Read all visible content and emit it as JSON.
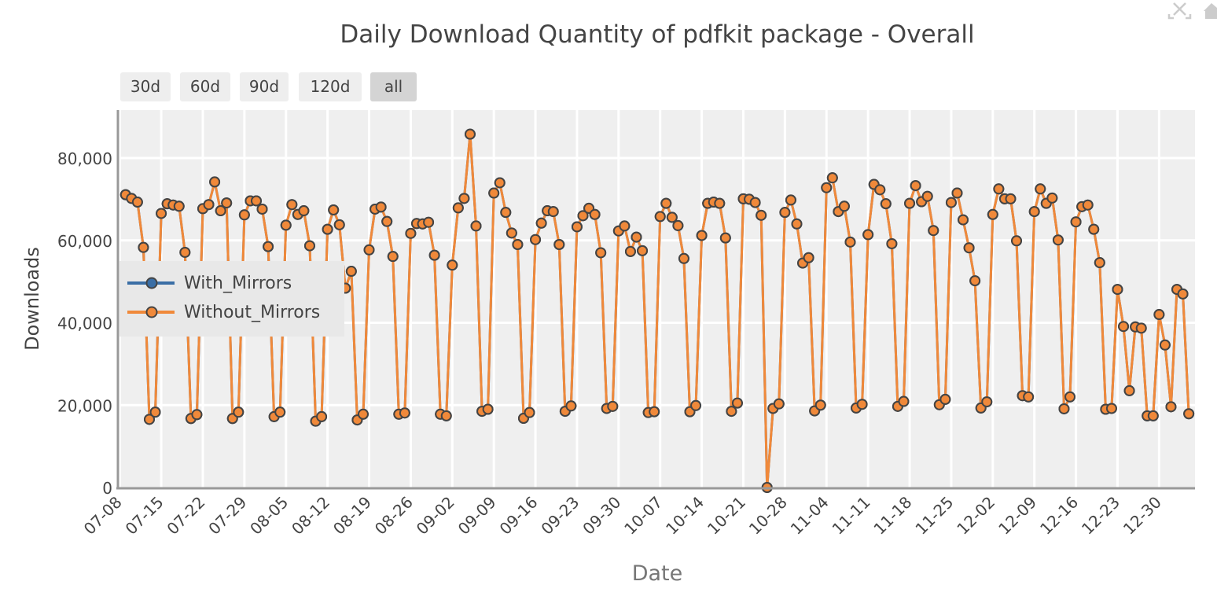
{
  "chart_data": {
    "type": "line",
    "title": "Daily Download Quantity of pdfkit package - Overall",
    "xlabel": "Date",
    "ylabel": "Downloads",
    "ylim": [
      0,
      91650
    ],
    "xlim": [
      "2019-07-07T17:00",
      "2020-01-05T01:00"
    ],
    "grid": true,
    "legend_position": "left-middle",
    "y_ticks": [
      0,
      20000,
      40000,
      60000,
      80000
    ],
    "y_tick_labels": [
      "0",
      "20,000",
      "40,000",
      "60,000",
      "80,000"
    ],
    "x_tick_labels": [
      "07-08",
      "07-15",
      "07-22",
      "07-29",
      "08-05",
      "08-12",
      "08-19",
      "08-26",
      "09-02",
      "09-09",
      "09-16",
      "09-23",
      "09-30",
      "10-07",
      "10-14",
      "10-21",
      "10-28",
      "11-04",
      "11-11",
      "11-18",
      "11-25",
      "12-02",
      "12-09",
      "12-16",
      "12-23",
      "12-30"
    ],
    "x_ticks": [
      "2019-07-08",
      "2019-07-15",
      "2019-07-22",
      "2019-07-29",
      "2019-08-05",
      "2019-08-12",
      "2019-08-19",
      "2019-08-26",
      "2019-09-02",
      "2019-09-09",
      "2019-09-16",
      "2019-09-23",
      "2019-09-30",
      "2019-10-07",
      "2019-10-14",
      "2019-10-21",
      "2019-10-28",
      "2019-11-04",
      "2019-11-11",
      "2019-11-18",
      "2019-11-25",
      "2019-12-02",
      "2019-12-09",
      "2019-12-16",
      "2019-12-23",
      "2019-12-30"
    ],
    "x": [
      "2019-07-09",
      "2019-07-10",
      "2019-07-11",
      "2019-07-12",
      "2019-07-13",
      "2019-07-14",
      "2019-07-15",
      "2019-07-16",
      "2019-07-17",
      "2019-07-18",
      "2019-07-19",
      "2019-07-20",
      "2019-07-21",
      "2019-07-22",
      "2019-07-23",
      "2019-07-24",
      "2019-07-25",
      "2019-07-26",
      "2019-07-27",
      "2019-07-28",
      "2019-07-29",
      "2019-07-30",
      "2019-07-31",
      "2019-08-01",
      "2019-08-02",
      "2019-08-03",
      "2019-08-04",
      "2019-08-05",
      "2019-08-06",
      "2019-08-07",
      "2019-08-08",
      "2019-08-09",
      "2019-08-10",
      "2019-08-11",
      "2019-08-12",
      "2019-08-13",
      "2019-08-14",
      "2019-08-15",
      "2019-08-16",
      "2019-08-17",
      "2019-08-18",
      "2019-08-19",
      "2019-08-20",
      "2019-08-21",
      "2019-08-22",
      "2019-08-23",
      "2019-08-24",
      "2019-08-25",
      "2019-08-26",
      "2019-08-27",
      "2019-08-28",
      "2019-08-29",
      "2019-08-30",
      "2019-08-31",
      "2019-09-01",
      "2019-09-02",
      "2019-09-03",
      "2019-09-04",
      "2019-09-05",
      "2019-09-06",
      "2019-09-07",
      "2019-09-08",
      "2019-09-09",
      "2019-09-10",
      "2019-09-11",
      "2019-09-12",
      "2019-09-13",
      "2019-09-14",
      "2019-09-15",
      "2019-09-16",
      "2019-09-17",
      "2019-09-18",
      "2019-09-19",
      "2019-09-20",
      "2019-09-21",
      "2019-09-22",
      "2019-09-23",
      "2019-09-24",
      "2019-09-25",
      "2019-09-26",
      "2019-09-27",
      "2019-09-28",
      "2019-09-29",
      "2019-09-30",
      "2019-10-01",
      "2019-10-02",
      "2019-10-03",
      "2019-10-04",
      "2019-10-05",
      "2019-10-06",
      "2019-10-07",
      "2019-10-08",
      "2019-10-09",
      "2019-10-10",
      "2019-10-11",
      "2019-10-12",
      "2019-10-13",
      "2019-10-14",
      "2019-10-15",
      "2019-10-16",
      "2019-10-17",
      "2019-10-18",
      "2019-10-19",
      "2019-10-20",
      "2019-10-21",
      "2019-10-22",
      "2019-10-23",
      "2019-10-24",
      "2019-10-25",
      "2019-10-26",
      "2019-10-27",
      "2019-10-28",
      "2019-10-29",
      "2019-10-30",
      "2019-10-31",
      "2019-11-01",
      "2019-11-02",
      "2019-11-03",
      "2019-11-04",
      "2019-11-05",
      "2019-11-06",
      "2019-11-07",
      "2019-11-08",
      "2019-11-09",
      "2019-11-10",
      "2019-11-11",
      "2019-11-12",
      "2019-11-13",
      "2019-11-14",
      "2019-11-15",
      "2019-11-16",
      "2019-11-17",
      "2019-11-18",
      "2019-11-19",
      "2019-11-20",
      "2019-11-21",
      "2019-11-22",
      "2019-11-23",
      "2019-11-24",
      "2019-11-25",
      "2019-11-26",
      "2019-11-27",
      "2019-11-28",
      "2019-11-29",
      "2019-11-30",
      "2019-12-01",
      "2019-12-02",
      "2019-12-03",
      "2019-12-04",
      "2019-12-05",
      "2019-12-06",
      "2019-12-07",
      "2019-12-08",
      "2019-12-09",
      "2019-12-10",
      "2019-12-11",
      "2019-12-12",
      "2019-12-13",
      "2019-12-14",
      "2019-12-15",
      "2019-12-16",
      "2019-12-17",
      "2019-12-18",
      "2019-12-19",
      "2019-12-20",
      "2019-12-21",
      "2019-12-22",
      "2019-12-23",
      "2019-12-24",
      "2019-12-25",
      "2019-12-26",
      "2019-12-27",
      "2019-12-28",
      "2019-12-29",
      "2019-12-30",
      "2019-12-31",
      "2020-01-01",
      "2020-01-02",
      "2020-01-03",
      "2020-01-04"
    ],
    "series": [
      {
        "name": "With_Mirrors",
        "color": "#3a6ea5",
        "values": [
          71100,
          70200,
          69300,
          58300,
          16550,
          18300,
          66550,
          68900,
          68600,
          68300,
          57100,
          16750,
          17700,
          67700,
          68700,
          74200,
          67200,
          69100,
          16750,
          18300,
          66200,
          69600,
          69600,
          67600,
          58500,
          17200,
          18300,
          63700,
          68700,
          66300,
          67200,
          58700,
          16100,
          17200,
          62700,
          67400,
          63800,
          48400,
          52500,
          16400,
          17800,
          57700,
          67600,
          68100,
          64600,
          56100,
          17800,
          18100,
          61700,
          64100,
          64000,
          64400,
          56400,
          17800,
          17400,
          54000,
          67900,
          70200,
          85800,
          63500,
          18500,
          19000,
          71500,
          74000,
          66800,
          61800,
          59000,
          16800,
          18200,
          60200,
          64200,
          67200,
          67000,
          59000,
          18500,
          19800,
          63300,
          66000,
          67800,
          66300,
          57000,
          19200,
          19700,
          62300,
          63500,
          57300,
          60800,
          57500,
          18200,
          18400,
          65800,
          69000,
          65600,
          63600,
          55600,
          18400,
          19900,
          61200,
          69000,
          69300,
          69000,
          60600,
          18500,
          20500,
          70100,
          70000,
          69200,
          66100,
          0,
          19200,
          20300,
          66800,
          69800,
          64000,
          54500,
          55800,
          18600,
          20000,
          72800,
          75200,
          67000,
          68300,
          59600,
          19300,
          20200,
          61400,
          73600,
          72300,
          68900,
          59200,
          19700,
          20900,
          69000,
          73300,
          69400,
          70700,
          62400,
          20100,
          21400,
          69200,
          71500,
          65000,
          58200,
          50200,
          19300,
          20800,
          66300,
          72500,
          70100,
          70100,
          59900,
          22300,
          22000,
          67000,
          72500,
          69000,
          70300,
          60100,
          19100,
          22000,
          64500,
          68200,
          68600,
          62700,
          54600,
          19000,
          19200,
          48100,
          39100,
          23500,
          39000,
          38700,
          17400,
          17400,
          42000,
          34600,
          19600,
          48100,
          47000,
          17900
        ]
      },
      {
        "name": "Without_Mirrors",
        "color": "#f0893a",
        "values": [
          71100,
          70200,
          69300,
          58300,
          16550,
          18300,
          66550,
          68900,
          68600,
          68300,
          57100,
          16750,
          17700,
          67700,
          68700,
          74200,
          67200,
          69100,
          16750,
          18300,
          66200,
          69600,
          69600,
          67600,
          58500,
          17200,
          18300,
          63700,
          68700,
          66300,
          67200,
          58700,
          16100,
          17200,
          62700,
          67400,
          63800,
          48400,
          52500,
          16400,
          17800,
          57700,
          67600,
          68100,
          64600,
          56100,
          17800,
          18100,
          61700,
          64100,
          64000,
          64400,
          56400,
          17800,
          17400,
          54000,
          67900,
          70200,
          85800,
          63500,
          18500,
          19000,
          71500,
          74000,
          66800,
          61800,
          59000,
          16800,
          18200,
          60200,
          64200,
          67200,
          67000,
          59000,
          18500,
          19800,
          63300,
          66000,
          67800,
          66300,
          57000,
          19200,
          19700,
          62300,
          63500,
          57300,
          60800,
          57500,
          18200,
          18400,
          65800,
          69000,
          65600,
          63600,
          55600,
          18400,
          19900,
          61200,
          69000,
          69300,
          69000,
          60600,
          18500,
          20500,
          70100,
          70000,
          69200,
          66100,
          0,
          19200,
          20300,
          66800,
          69800,
          64000,
          54500,
          55800,
          18600,
          20000,
          72800,
          75200,
          67000,
          68300,
          59600,
          19300,
          20200,
          61400,
          73600,
          72300,
          68900,
          59200,
          19700,
          20900,
          69000,
          73300,
          69400,
          70700,
          62400,
          20100,
          21400,
          69200,
          71500,
          65000,
          58200,
          50200,
          19300,
          20800,
          66300,
          72500,
          70100,
          70100,
          59900,
          22300,
          22000,
          67000,
          72500,
          69000,
          70300,
          60100,
          19100,
          22000,
          64500,
          68200,
          68600,
          62700,
          54600,
          19000,
          19200,
          48100,
          39100,
          23500,
          39000,
          38700,
          17400,
          17400,
          42000,
          34600,
          19600,
          48100,
          47000,
          17900
        ]
      }
    ]
  },
  "range_buttons": [
    {
      "label": "30d",
      "active": false
    },
    {
      "label": "60d",
      "active": false
    },
    {
      "label": "90d",
      "active": false
    },
    {
      "label": "120d",
      "active": false
    },
    {
      "label": "all",
      "active": true
    }
  ],
  "modebar": {
    "icons": [
      "autoscale-icon",
      "reset-axes-icon"
    ]
  }
}
